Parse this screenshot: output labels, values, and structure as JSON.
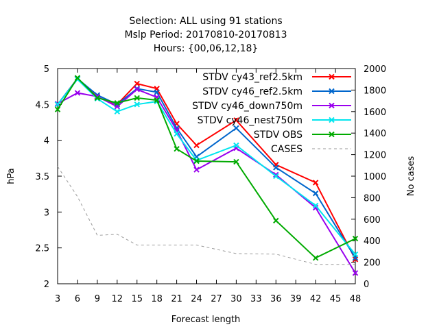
{
  "chart_data": {
    "type": "line",
    "title_lines": [
      "Selection: ALL using    91 stations",
      "Mslp   Period: 20170810-20170813",
      "Hours: {00,06,12,18}"
    ],
    "xlabel": "Forecast length",
    "ylabel": "hPa",
    "y2label": "No cases",
    "x": [
      3,
      6,
      9,
      12,
      15,
      18,
      21,
      24,
      30,
      36,
      42,
      48
    ],
    "xticks": [
      3,
      6,
      9,
      12,
      15,
      18,
      21,
      24,
      27,
      30,
      33,
      36,
      39,
      42,
      45,
      48
    ],
    "xlim": [
      3,
      48
    ],
    "ylim": [
      2,
      5
    ],
    "yticks": [
      2,
      2.5,
      3,
      3.5,
      4,
      4.5,
      5
    ],
    "y2lim": [
      0,
      2000
    ],
    "y2ticks": [
      0,
      200,
      400,
      600,
      800,
      1000,
      1200,
      1400,
      1600,
      1800,
      2000
    ],
    "grid": false,
    "legend_position": "top-right",
    "series": [
      {
        "name": "STDV cy43_ref2.5km",
        "color": "#ff0000",
        "axis": "y",
        "values": [
          4.5,
          4.86,
          4.6,
          4.5,
          4.79,
          4.72,
          4.23,
          3.93,
          4.28,
          3.66,
          3.41,
          2.34
        ]
      },
      {
        "name": "STDV cy46_ref2.5km",
        "color": "#0066cc",
        "axis": "y",
        "values": [
          4.5,
          4.86,
          4.63,
          4.5,
          4.72,
          4.67,
          4.17,
          3.77,
          4.17,
          3.62,
          3.26,
          2.36
        ]
      },
      {
        "name": "STDV cy46_down750m",
        "color": "#9900ee",
        "axis": "y",
        "values": [
          4.51,
          4.66,
          4.61,
          4.47,
          4.71,
          4.6,
          4.14,
          3.59,
          3.89,
          3.52,
          3.06,
          2.15
        ]
      },
      {
        "name": "STDV cy46_nest750m",
        "color": "#00e5ee",
        "axis": "y",
        "values": [
          4.5,
          4.85,
          4.58,
          4.4,
          4.5,
          4.54,
          4.09,
          3.72,
          3.93,
          3.5,
          3.09,
          2.41
        ]
      },
      {
        "name": "STDV OBS",
        "color": "#00aa00",
        "axis": "y",
        "values": [
          4.43,
          4.87,
          4.59,
          4.52,
          4.59,
          4.56,
          3.88,
          3.71,
          3.7,
          2.88,
          2.36,
          2.63
        ]
      },
      {
        "name": "CASES",
        "color": "#999999",
        "axis": "y2",
        "dashed": true,
        "values": [
          1090,
          810,
          450,
          460,
          360,
          360,
          360,
          360,
          280,
          275,
          180,
          180
        ]
      }
    ]
  }
}
